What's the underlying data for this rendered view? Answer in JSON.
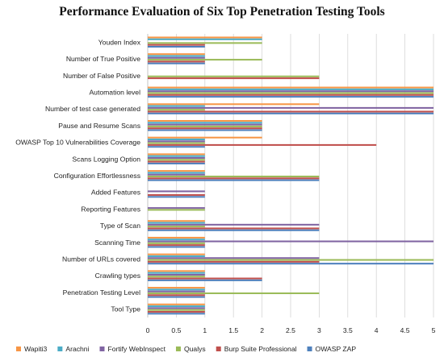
{
  "chart_data": {
    "type": "bar",
    "orientation": "horizontal",
    "title": "Performance Evaluation of Six Top Penetration Testing Tools",
    "xlabel": "",
    "ylabel": "",
    "xlim": [
      0,
      5
    ],
    "xticks": [
      "0",
      "0.5",
      "1",
      "1.5",
      "2",
      "2.5",
      "3",
      "3.5",
      "4",
      "4.5",
      "5"
    ],
    "grid": "vertical",
    "legend_position": "bottom",
    "categories": [
      "Youden Index",
      "Number of True Positive",
      "Number of False Positive",
      "Automation level",
      "Number of test case generated",
      "Pause and Resume Scans",
      "OWASP Top 10 Vulnerabilities Coverage",
      "Scans Logging Option",
      "Configuration Effortlessness",
      "Added Features",
      "Reporting Features",
      "Type of Scan",
      "Scanning Time",
      "Number of URLs covered",
      "Crawling types",
      "Penetration Testing Level",
      "Tool Type"
    ],
    "series": [
      {
        "name": "Wapiti3",
        "color": "#f79646",
        "values": [
          2,
          1,
          0,
          5,
          3,
          2,
          2,
          1,
          1,
          0,
          0,
          1,
          1,
          1,
          1,
          1,
          1
        ]
      },
      {
        "name": "Arachni",
        "color": "#4bacc6",
        "values": [
          2,
          1,
          0,
          5,
          1,
          2,
          1,
          1,
          1,
          0,
          0,
          1,
          1,
          1,
          1,
          1,
          1
        ]
      },
      {
        "name": "Fortify WebInspect",
        "color": "#8064a2",
        "values": [
          0,
          1,
          0,
          5,
          5,
          2,
          1,
          1,
          1,
          1,
          1,
          3,
          5,
          3,
          1,
          1,
          1
        ]
      },
      {
        "name": "Qualys",
        "color": "#9bbb59",
        "values": [
          2,
          2,
          3,
          5,
          1,
          2,
          1,
          1,
          3,
          0,
          1,
          1,
          1,
          5,
          1,
          3,
          1
        ]
      },
      {
        "name": "Burp Suite Professional",
        "color": "#c0504d",
        "values": [
          1,
          1,
          3,
          5,
          5,
          2,
          4,
          1,
          3,
          1,
          0,
          3,
          1,
          3,
          2,
          1,
          1
        ]
      },
      {
        "name": "OWASP ZAP",
        "color": "#4f81bd",
        "values": [
          1,
          1,
          0,
          5,
          5,
          2,
          1,
          1,
          3,
          1,
          0,
          3,
          1,
          5,
          2,
          1,
          1
        ]
      }
    ]
  }
}
